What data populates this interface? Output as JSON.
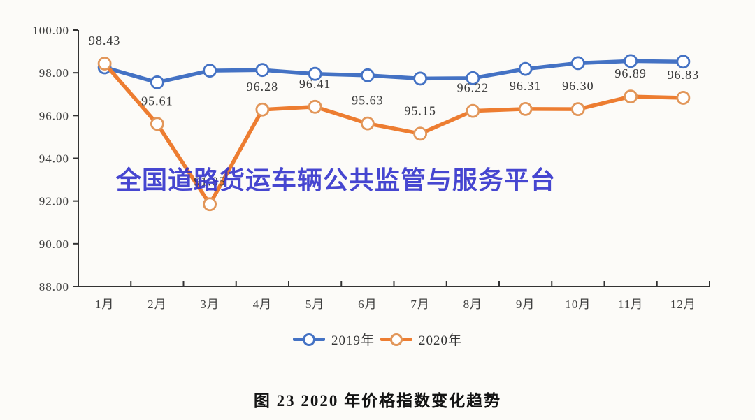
{
  "page": {
    "background": "#fcfbf8"
  },
  "watermark": {
    "text": "全国道路货运车辆公共监管与服务平台",
    "color": "#3333cc"
  },
  "caption": {
    "text": "图 23 2020 年价格指数变化趋势"
  },
  "legend": [
    {
      "label": "2019年",
      "color": "#4472c4",
      "marker_color": "#4472c4"
    },
    {
      "label": "2020年",
      "color": "#ed7d31",
      "marker_color": "#e29659"
    }
  ],
  "colors": {
    "axis": "#333333",
    "tick_text": "#404040",
    "data_label": "#3a3a3a"
  },
  "chart_data": {
    "type": "line",
    "title": "图 23 2020 年价格指数变化趋势",
    "categories": [
      "1月",
      "2月",
      "3月",
      "4月",
      "5月",
      "6月",
      "7月",
      "8月",
      "9月",
      "10月",
      "11月",
      "12月"
    ],
    "series": [
      {
        "name": "2019年",
        "color": "#4472c4",
        "marker_color": "#4472c4",
        "values": [
          98.25,
          97.55,
          98.1,
          98.13,
          97.95,
          97.88,
          97.73,
          97.75,
          98.18,
          98.45,
          98.55,
          98.52
        ]
      },
      {
        "name": "2020年",
        "color": "#ed7d31",
        "marker_color": "#e29659",
        "values": [
          98.43,
          95.61,
          91.85,
          96.28,
          96.41,
          95.63,
          95.15,
          96.22,
          96.31,
          96.3,
          96.89,
          96.83
        ],
        "labels": [
          "98.43",
          "95.61",
          "91.85",
          "96.28",
          "96.41",
          "95.63",
          "95.15",
          "96.22",
          "96.31",
          "96.30",
          "96.89",
          "96.83"
        ]
      }
    ],
    "ylim": [
      88,
      100
    ],
    "yticks": [
      100,
      98,
      96,
      94,
      92,
      90,
      88
    ],
    "grid": false,
    "legend_position": "bottom",
    "marker_style": "open-circle"
  }
}
